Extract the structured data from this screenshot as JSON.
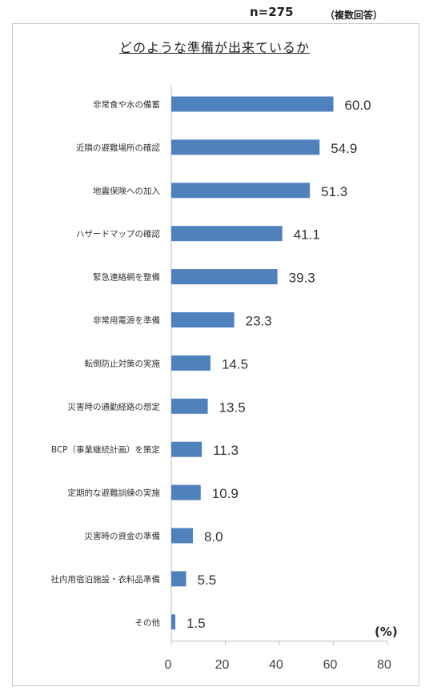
{
  "header": {
    "sample": "n=275",
    "multi": "（複数回答）"
  },
  "chart_data": {
    "type": "bar",
    "orientation": "horizontal",
    "title": "どのような準備が出来ているか",
    "categories": [
      "非常食や水の備蓄",
      "近隣の避難場所の確認",
      "地震保険への加入",
      "ハザードマップの確認",
      "緊急連絡網を整備",
      "非常用電源を準備",
      "転倒防止対策の実施",
      "災害時の通勤経路の想定",
      "BCP（事業継続計画）を策定",
      "定期的な避難訓練の実施",
      "災害時の資金の準備",
      "社内用宿泊施設・衣料品準備",
      "その他"
    ],
    "values": [
      60.0,
      54.9,
      51.3,
      41.1,
      39.3,
      23.3,
      14.5,
      13.5,
      11.3,
      10.9,
      8.0,
      5.5,
      1.5
    ],
    "value_labels": [
      "60.0",
      "54.9",
      "51.3",
      "41.1",
      "39.3",
      "23.3",
      "14.5",
      "13.5",
      "11.3",
      "10.9",
      "8.0",
      "5.5",
      "1.5"
    ],
    "xlim": [
      0,
      80
    ],
    "xticks": [
      "0",
      "20",
      "40",
      "60",
      "80"
    ],
    "unit_label": "(%)",
    "bar_color": "#4f81bd",
    "grid": false
  }
}
